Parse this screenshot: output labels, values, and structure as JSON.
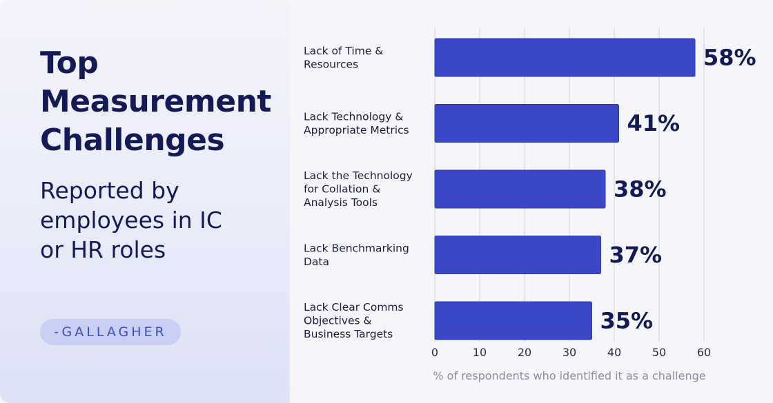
{
  "title_lines": [
    "Top",
    "Measurement",
    "Challenges"
  ],
  "subtitle_lines": [
    "Reported by",
    "employees in IC",
    "or HR roles"
  ],
  "source": "-GALLAGHER",
  "colors": {
    "bar": "#3a47c7",
    "bar_edge": "#2e39a8",
    "title": "#131a55",
    "grid": "#cfd0d8",
    "accent_badge": "#c9cff2"
  },
  "chart_data": {
    "type": "bar",
    "orientation": "horizontal",
    "categories": [
      "Lack of Time & Resources",
      "Lack Technology & Appropriate Metrics",
      "Lack the Technology for Collation & Analysis Tools",
      "Lack Benchmarking Data",
      "Lack Clear Comms Objectives & Business Targets"
    ],
    "category_lines": [
      [
        "Lack of Time &",
        "Resources"
      ],
      [
        "Lack Technology &",
        "Appropriate Metrics"
      ],
      [
        "Lack the Technology",
        "for Collation &",
        "Analysis Tools"
      ],
      [
        "Lack Benchmarking",
        "Data"
      ],
      [
        "Lack Clear Comms",
        "Objectives &",
        "Business Targets"
      ]
    ],
    "values": [
      58,
      41,
      38,
      37,
      35
    ],
    "value_labels": [
      "58%",
      "41%",
      "38%",
      "37%",
      "35%"
    ],
    "xlabel": "% of respondents who identified it as a challenge",
    "xlim": [
      0,
      60
    ],
    "xticks": [
      0,
      10,
      20,
      30,
      40,
      50,
      60
    ],
    "grid": "vertical"
  }
}
